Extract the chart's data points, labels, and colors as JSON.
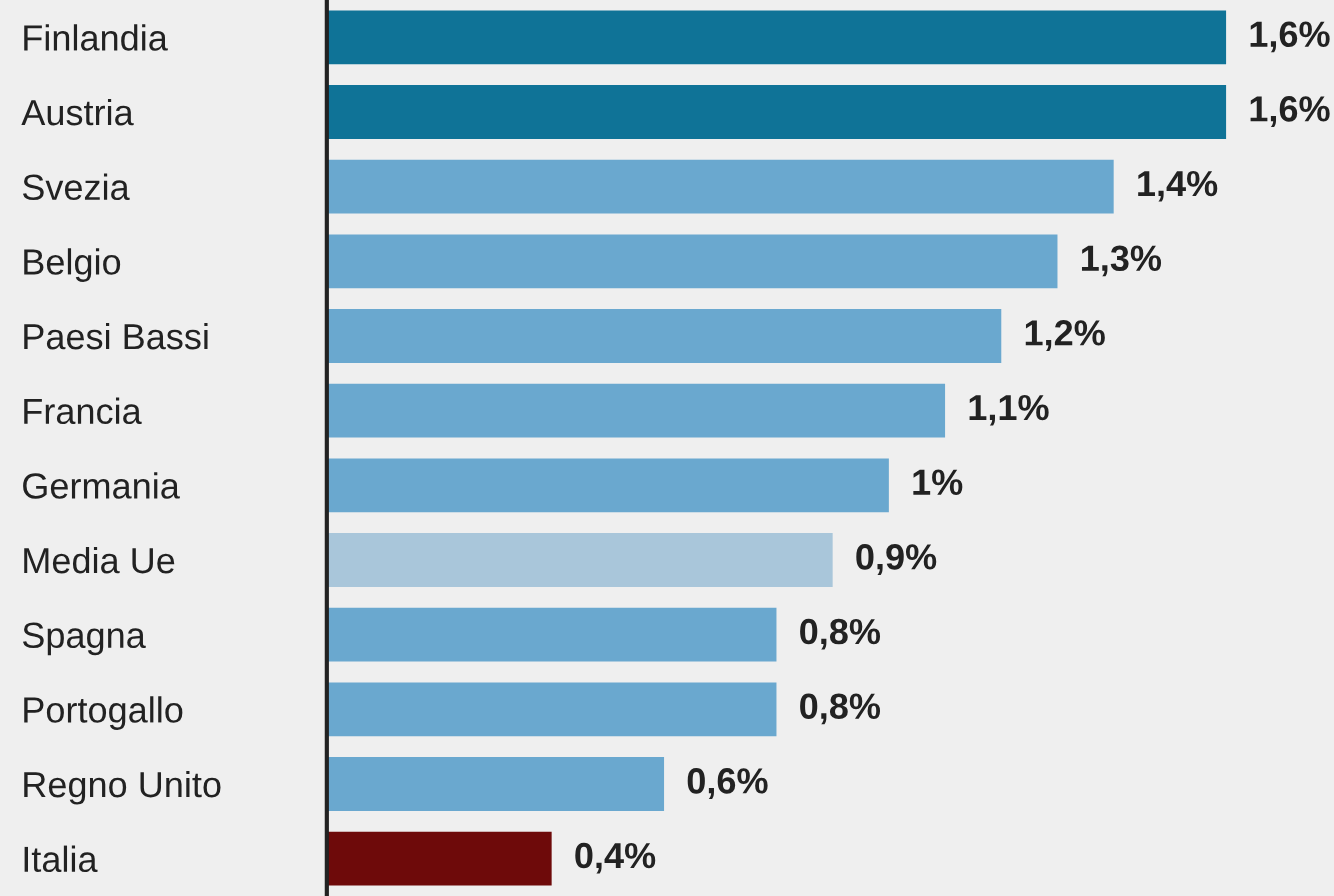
{
  "chart_data": {
    "type": "bar",
    "orientation": "horizontal",
    "categories": [
      "Finlandia",
      "Austria",
      "Svezia",
      "Belgio",
      "Paesi Bassi",
      "Francia",
      "Germania",
      "Media Ue",
      "Spagna",
      "Portogallo",
      "Regno Unito",
      "Italia"
    ],
    "values": [
      1.6,
      1.6,
      1.4,
      1.3,
      1.2,
      1.1,
      1,
      0.9,
      0.8,
      0.8,
      0.6,
      0.4
    ],
    "colors": [
      "#0f7397",
      "#0f7397",
      "#6aa8cf",
      "#6aa8cf",
      "#6aa8cf",
      "#6aa8cf",
      "#6aa8cf",
      "#a9c6da",
      "#6aa8cf",
      "#6aa8cf",
      "#6aa8cf",
      "#6e0a0a"
    ],
    "value_labels": [
      "1,6%",
      "1,6%",
      "1,4%",
      "1,3%",
      "1,2%",
      "1,1%",
      "1%",
      "0,9%",
      "0,8%",
      "0,8%",
      "0,6%",
      "0,4%"
    ],
    "grid": false,
    "legend": false
  }
}
